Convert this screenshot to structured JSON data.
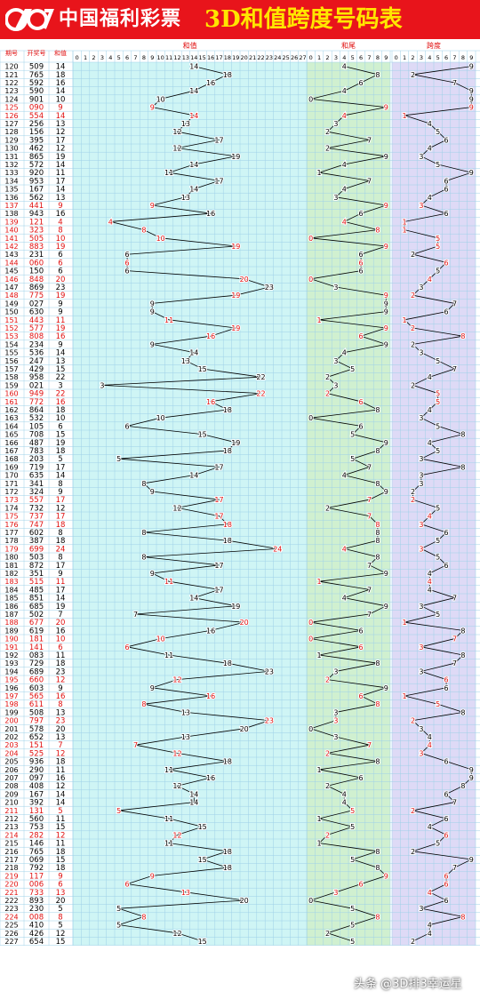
{
  "header": {
    "brand": "中国福利彩票",
    "title": "3D和值跨度号码表"
  },
  "watermark": "头条 @3D排3幸运星",
  "colors": {
    "banner": "#e8141b",
    "title": "#ffe600",
    "sum_zone_bg": "#cff5f5",
    "tail_zone_bg": "#d0f0d0",
    "span_zone_bg": "#dedaf6",
    "grid": "#9ed0e8",
    "red": "#e01010",
    "black": "#000000"
  },
  "chart_data": {
    "type": "table",
    "columns": {
      "issue": "期号",
      "number": "开奖号",
      "sum": "和值"
    },
    "sections": [
      "和值",
      "和尾",
      "跨度"
    ],
    "sum_axis": [
      "0",
      "1",
      "2",
      "3",
      "4",
      "5",
      "6",
      "7",
      "8",
      "9",
      "10",
      "11",
      "12",
      "13",
      "14",
      "15",
      "16",
      "17",
      "18",
      "19",
      "20",
      "21",
      "22",
      "23",
      "24",
      "25",
      "26",
      "27"
    ],
    "digit_axis": [
      "0",
      "1",
      "2",
      "3",
      "4",
      "5",
      "6",
      "7",
      "8",
      "9"
    ],
    "rows": [
      {
        "issue": "120",
        "number": "509",
        "sum": 14,
        "tail": 4,
        "span": 9,
        "red": false
      },
      {
        "issue": "121",
        "number": "765",
        "sum": 18,
        "tail": 8,
        "span": 2,
        "red": false
      },
      {
        "issue": "122",
        "number": "592",
        "sum": 16,
        "tail": 6,
        "span": 7,
        "red": false
      },
      {
        "issue": "123",
        "number": "590",
        "sum": 14,
        "tail": 4,
        "span": 9,
        "red": false
      },
      {
        "issue": "124",
        "number": "901",
        "sum": 10,
        "tail": 0,
        "span": 9,
        "red": false
      },
      {
        "issue": "125",
        "number": "090",
        "sum": 9,
        "tail": 9,
        "span": 9,
        "red": true
      },
      {
        "issue": "126",
        "number": "554",
        "sum": 14,
        "tail": 4,
        "span": 1,
        "red": true
      },
      {
        "issue": "127",
        "number": "256",
        "sum": 13,
        "tail": 3,
        "span": 4,
        "red": false
      },
      {
        "issue": "128",
        "number": "156",
        "sum": 12,
        "tail": 2,
        "span": 5,
        "red": false
      },
      {
        "issue": "129",
        "number": "395",
        "sum": 17,
        "tail": 7,
        "span": 6,
        "red": false
      },
      {
        "issue": "130",
        "number": "462",
        "sum": 12,
        "tail": 2,
        "span": 4,
        "red": false
      },
      {
        "issue": "131",
        "number": "865",
        "sum": 19,
        "tail": 9,
        "span": 3,
        "red": false
      },
      {
        "issue": "132",
        "number": "572",
        "sum": 14,
        "tail": 4,
        "span": 5,
        "red": false
      },
      {
        "issue": "133",
        "number": "920",
        "sum": 11,
        "tail": 1,
        "span": 9,
        "red": false
      },
      {
        "issue": "134",
        "number": "953",
        "sum": 17,
        "tail": 7,
        "span": 6,
        "red": false
      },
      {
        "issue": "135",
        "number": "167",
        "sum": 14,
        "tail": 4,
        "span": 6,
        "red": false
      },
      {
        "issue": "136",
        "number": "562",
        "sum": 13,
        "tail": 3,
        "span": 4,
        "red": false
      },
      {
        "issue": "137",
        "number": "441",
        "sum": 9,
        "tail": 9,
        "span": 3,
        "red": true
      },
      {
        "issue": "138",
        "number": "943",
        "sum": 16,
        "tail": 6,
        "span": 6,
        "red": false
      },
      {
        "issue": "139",
        "number": "121",
        "sum": 4,
        "tail": 4,
        "span": 1,
        "red": true
      },
      {
        "issue": "140",
        "number": "323",
        "sum": 8,
        "tail": 8,
        "span": 1,
        "red": true
      },
      {
        "issue": "141",
        "number": "505",
        "sum": 10,
        "tail": 0,
        "span": 5,
        "red": true
      },
      {
        "issue": "142",
        "number": "883",
        "sum": 19,
        "tail": 9,
        "span": 5,
        "red": true
      },
      {
        "issue": "143",
        "number": "231",
        "sum": 6,
        "tail": 6,
        "span": 2,
        "red": false
      },
      {
        "issue": "144",
        "number": "060",
        "sum": 6,
        "tail": 6,
        "span": 6,
        "red": true
      },
      {
        "issue": "145",
        "number": "150",
        "sum": 6,
        "tail": 6,
        "span": 5,
        "red": false
      },
      {
        "issue": "146",
        "number": "848",
        "sum": 20,
        "tail": 0,
        "span": 4,
        "red": true
      },
      {
        "issue": "147",
        "number": "869",
        "sum": 23,
        "tail": 3,
        "span": 3,
        "red": false
      },
      {
        "issue": "148",
        "number": "775",
        "sum": 19,
        "tail": 9,
        "span": 2,
        "red": true
      },
      {
        "issue": "149",
        "number": "027",
        "sum": 9,
        "tail": 9,
        "span": 7,
        "red": false
      },
      {
        "issue": "150",
        "number": "630",
        "sum": 9,
        "tail": 9,
        "span": 6,
        "red": false
      },
      {
        "issue": "151",
        "number": "443",
        "sum": 11,
        "tail": 1,
        "span": 1,
        "red": true
      },
      {
        "issue": "152",
        "number": "577",
        "sum": 19,
        "tail": 9,
        "span": 2,
        "red": true
      },
      {
        "issue": "153",
        "number": "808",
        "sum": 16,
        "tail": 6,
        "span": 8,
        "red": true
      },
      {
        "issue": "154",
        "number": "234",
        "sum": 9,
        "tail": 9,
        "span": 2,
        "red": false
      },
      {
        "issue": "155",
        "number": "536",
        "sum": 14,
        "tail": 4,
        "span": 3,
        "red": false
      },
      {
        "issue": "156",
        "number": "247",
        "sum": 13,
        "tail": 3,
        "span": 5,
        "red": false
      },
      {
        "issue": "157",
        "number": "429",
        "sum": 15,
        "tail": 5,
        "span": 7,
        "red": false
      },
      {
        "issue": "158",
        "number": "958",
        "sum": 22,
        "tail": 2,
        "span": 4,
        "red": false
      },
      {
        "issue": "159",
        "number": "021",
        "sum": 3,
        "tail": 3,
        "span": 2,
        "red": false
      },
      {
        "issue": "160",
        "number": "949",
        "sum": 22,
        "tail": 2,
        "span": 5,
        "red": true
      },
      {
        "issue": "161",
        "number": "772",
        "sum": 16,
        "tail": 6,
        "span": 5,
        "red": true
      },
      {
        "issue": "162",
        "number": "864",
        "sum": 18,
        "tail": 8,
        "span": 4,
        "red": false
      },
      {
        "issue": "163",
        "number": "532",
        "sum": 10,
        "tail": 0,
        "span": 3,
        "red": false
      },
      {
        "issue": "164",
        "number": "105",
        "sum": 6,
        "tail": 6,
        "span": 5,
        "red": false
      },
      {
        "issue": "165",
        "number": "708",
        "sum": 15,
        "tail": 5,
        "span": 8,
        "red": false
      },
      {
        "issue": "166",
        "number": "487",
        "sum": 19,
        "tail": 9,
        "span": 4,
        "red": false
      },
      {
        "issue": "167",
        "number": "783",
        "sum": 18,
        "tail": 8,
        "span": 5,
        "red": false
      },
      {
        "issue": "168",
        "number": "203",
        "sum": 5,
        "tail": 5,
        "span": 3,
        "red": false
      },
      {
        "issue": "169",
        "number": "719",
        "sum": 17,
        "tail": 7,
        "span": 8,
        "red": false
      },
      {
        "issue": "170",
        "number": "635",
        "sum": 14,
        "tail": 4,
        "span": 3,
        "red": false
      },
      {
        "issue": "171",
        "number": "341",
        "sum": 8,
        "tail": 8,
        "span": 3,
        "red": false
      },
      {
        "issue": "172",
        "number": "324",
        "sum": 9,
        "tail": 9,
        "span": 2,
        "red": false
      },
      {
        "issue": "173",
        "number": "557",
        "sum": 17,
        "tail": 7,
        "span": 2,
        "red": true
      },
      {
        "issue": "174",
        "number": "732",
        "sum": 12,
        "tail": 2,
        "span": 5,
        "red": false
      },
      {
        "issue": "175",
        "number": "737",
        "sum": 17,
        "tail": 7,
        "span": 4,
        "red": true
      },
      {
        "issue": "176",
        "number": "747",
        "sum": 18,
        "tail": 8,
        "span": 3,
        "red": true
      },
      {
        "issue": "177",
        "number": "602",
        "sum": 8,
        "tail": 8,
        "span": 6,
        "red": false
      },
      {
        "issue": "178",
        "number": "387",
        "sum": 18,
        "tail": 8,
        "span": 5,
        "red": false
      },
      {
        "issue": "179",
        "number": "699",
        "sum": 24,
        "tail": 4,
        "span": 3,
        "red": true
      },
      {
        "issue": "180",
        "number": "503",
        "sum": 8,
        "tail": 8,
        "span": 5,
        "red": false
      },
      {
        "issue": "181",
        "number": "872",
        "sum": 17,
        "tail": 7,
        "span": 6,
        "red": false
      },
      {
        "issue": "182",
        "number": "351",
        "sum": 9,
        "tail": 9,
        "span": 4,
        "red": false
      },
      {
        "issue": "183",
        "number": "515",
        "sum": 11,
        "tail": 1,
        "span": 4,
        "red": true
      },
      {
        "issue": "184",
        "number": "485",
        "sum": 17,
        "tail": 7,
        "span": 4,
        "red": false
      },
      {
        "issue": "185",
        "number": "851",
        "sum": 14,
        "tail": 4,
        "span": 7,
        "red": false
      },
      {
        "issue": "186",
        "number": "685",
        "sum": 19,
        "tail": 9,
        "span": 3,
        "red": false
      },
      {
        "issue": "187",
        "number": "502",
        "sum": 7,
        "tail": 7,
        "span": 5,
        "red": false
      },
      {
        "issue": "188",
        "number": "677",
        "sum": 20,
        "tail": 0,
        "span": 1,
        "red": true
      },
      {
        "issue": "189",
        "number": "619",
        "sum": 16,
        "tail": 6,
        "span": 8,
        "red": false
      },
      {
        "issue": "190",
        "number": "181",
        "sum": 10,
        "tail": 0,
        "span": 7,
        "red": true
      },
      {
        "issue": "191",
        "number": "141",
        "sum": 6,
        "tail": 6,
        "span": 3,
        "red": true
      },
      {
        "issue": "192",
        "number": "083",
        "sum": 11,
        "tail": 1,
        "span": 8,
        "red": false
      },
      {
        "issue": "193",
        "number": "729",
        "sum": 18,
        "tail": 8,
        "span": 7,
        "red": false
      },
      {
        "issue": "194",
        "number": "689",
        "sum": 23,
        "tail": 3,
        "span": 3,
        "red": false
      },
      {
        "issue": "195",
        "number": "660",
        "sum": 12,
        "tail": 2,
        "span": 6,
        "red": true
      },
      {
        "issue": "196",
        "number": "603",
        "sum": 9,
        "tail": 9,
        "span": 6,
        "red": false
      },
      {
        "issue": "197",
        "number": "565",
        "sum": 16,
        "tail": 6,
        "span": 1,
        "red": true
      },
      {
        "issue": "198",
        "number": "611",
        "sum": 8,
        "tail": 8,
        "span": 5,
        "red": true
      },
      {
        "issue": "199",
        "number": "508",
        "sum": 13,
        "tail": 3,
        "span": 8,
        "red": false
      },
      {
        "issue": "200",
        "number": "797",
        "sum": 23,
        "tail": 3,
        "span": 2,
        "red": true
      },
      {
        "issue": "201",
        "number": "578",
        "sum": 20,
        "tail": 0,
        "span": 3,
        "red": false
      },
      {
        "issue": "202",
        "number": "652",
        "sum": 13,
        "tail": 3,
        "span": 4,
        "red": false
      },
      {
        "issue": "203",
        "number": "151",
        "sum": 7,
        "tail": 7,
        "span": 4,
        "red": true
      },
      {
        "issue": "204",
        "number": "525",
        "sum": 12,
        "tail": 2,
        "span": 3,
        "red": true
      },
      {
        "issue": "205",
        "number": "936",
        "sum": 18,
        "tail": 8,
        "span": 6,
        "red": false
      },
      {
        "issue": "206",
        "number": "290",
        "sum": 11,
        "tail": 1,
        "span": 9,
        "red": false
      },
      {
        "issue": "207",
        "number": "097",
        "sum": 16,
        "tail": 6,
        "span": 9,
        "red": false
      },
      {
        "issue": "208",
        "number": "408",
        "sum": 12,
        "tail": 2,
        "span": 8,
        "red": false
      },
      {
        "issue": "209",
        "number": "167",
        "sum": 14,
        "tail": 4,
        "span": 6,
        "red": false
      },
      {
        "issue": "210",
        "number": "392",
        "sum": 14,
        "tail": 4,
        "span": 7,
        "red": false
      },
      {
        "issue": "211",
        "number": "131",
        "sum": 5,
        "tail": 5,
        "span": 2,
        "red": true
      },
      {
        "issue": "212",
        "number": "560",
        "sum": 11,
        "tail": 1,
        "span": 6,
        "red": false
      },
      {
        "issue": "213",
        "number": "753",
        "sum": 15,
        "tail": 5,
        "span": 4,
        "red": false
      },
      {
        "issue": "214",
        "number": "282",
        "sum": 12,
        "tail": 2,
        "span": 6,
        "red": true
      },
      {
        "issue": "215",
        "number": "146",
        "sum": 11,
        "tail": 1,
        "span": 5,
        "red": false
      },
      {
        "issue": "216",
        "number": "765",
        "sum": 18,
        "tail": 8,
        "span": 2,
        "red": false
      },
      {
        "issue": "217",
        "number": "069",
        "sum": 15,
        "tail": 5,
        "span": 9,
        "red": false
      },
      {
        "issue": "218",
        "number": "792",
        "sum": 18,
        "tail": 8,
        "span": 7,
        "red": false
      },
      {
        "issue": "219",
        "number": "117",
        "sum": 9,
        "tail": 9,
        "span": 6,
        "red": true
      },
      {
        "issue": "220",
        "number": "006",
        "sum": 6,
        "tail": 6,
        "span": 6,
        "red": true
      },
      {
        "issue": "221",
        "number": "733",
        "sum": 13,
        "tail": 3,
        "span": 4,
        "red": true
      },
      {
        "issue": "222",
        "number": "893",
        "sum": 20,
        "tail": 0,
        "span": 6,
        "red": false
      },
      {
        "issue": "223",
        "number": "230",
        "sum": 5,
        "tail": 5,
        "span": 3,
        "red": false
      },
      {
        "issue": "224",
        "number": "008",
        "sum": 8,
        "tail": 8,
        "span": 8,
        "red": true
      },
      {
        "issue": "225",
        "number": "410",
        "sum": 5,
        "tail": 5,
        "span": 4,
        "red": false
      },
      {
        "issue": "226",
        "number": "426",
        "sum": 12,
        "tail": 2,
        "span": 4,
        "red": false
      },
      {
        "issue": "227",
        "number": "654",
        "sum": 15,
        "tail": 5,
        "span": 2,
        "red": false
      }
    ]
  }
}
